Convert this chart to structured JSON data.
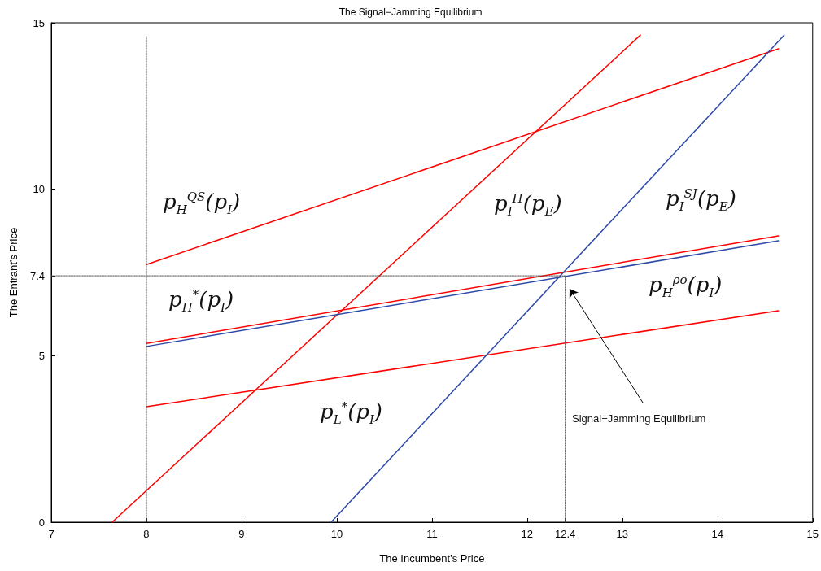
{
  "chart_data": {
    "type": "line",
    "title": "The Signal−Jamming Equilibrium",
    "xlabel": "The Incumbent’s Price",
    "ylabel": "The Entrant’s Price",
    "xlim": [
      7,
      15
    ],
    "xticks": [
      7,
      8,
      9,
      10,
      11,
      12,
      12.4,
      13,
      14,
      15
    ],
    "ylim": [
      0,
      15
    ],
    "yticks": [
      0,
      5,
      7.4,
      10,
      15
    ],
    "grid": false,
    "marker": "none",
    "series": [
      {
        "color": "#ff0000",
        "x": [
          8,
          14.64
        ],
        "values": [
          7.74,
          14.22
        ]
      },
      {
        "color": "#ff0000",
        "x": [
          7.64,
          13.19
        ],
        "values": [
          0,
          14.63
        ]
      },
      {
        "color": "#ff0000",
        "x": [
          8,
          14.64
        ],
        "values": [
          5.37,
          8.6
        ]
      },
      {
        "color": "#ff0000",
        "x": [
          8,
          14.64
        ],
        "values": [
          3.47,
          6.35
        ]
      },
      {
        "color": "#2e4aa8",
        "x": [
          8,
          14.64
        ],
        "values": [
          5.28,
          8.45
        ]
      },
      {
        "color": "#2e4aa8",
        "x": [
          9.94,
          14.7
        ],
        "values": [
          0,
          14.63
        ]
      },
      {
        "color": "#555555",
        "line_style": "dotted",
        "x": [
          8,
          8
        ],
        "values": [
          0,
          14.6
        ]
      },
      {
        "color": "#555555",
        "line_style": "dotted",
        "x": [
          7,
          12.4
        ],
        "values": [
          7.4,
          7.4
        ]
      },
      {
        "color": "#555555",
        "line_style": "dotted",
        "x": [
          12.4,
          12.4
        ],
        "values": [
          0,
          7.4
        ]
      }
    ],
    "annotations": [
      "p$_{H}$$^{QS}$(p$_{I}$)",
      "p$_{I}$$^{H}$(p$_{E}$)",
      "p$_{I}$$^{SJ}$(p$_{E}$)",
      "p$_{H}$$^{ρo}$(p$_{I}$)",
      "p$_{H}$$^{*}$(p$_{I}$)",
      "p$_{L}$$^{*}$(p$_{I}$)",
      "Signal−Jamming  Equilibrium"
    ]
  }
}
